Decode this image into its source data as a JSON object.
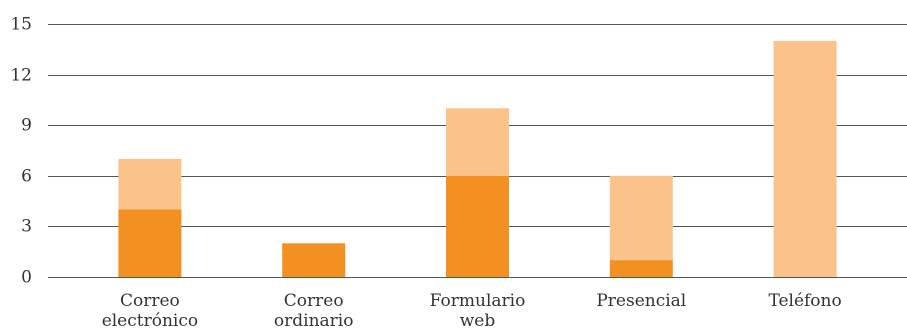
{
  "chart_data": {
    "type": "bar",
    "stacked": true,
    "categories": [
      [
        "Correo",
        "electrónico"
      ],
      [
        "Correo",
        "ordinario"
      ],
      [
        "Formulario",
        "web"
      ],
      [
        "Presencial"
      ],
      [
        "Teléfono"
      ]
    ],
    "series": [
      {
        "values": [
          4,
          2,
          6,
          1,
          0
        ],
        "color": "#F39022"
      },
      {
        "values": [
          3,
          0,
          4,
          5,
          14
        ],
        "color": "#FBC38A"
      }
    ],
    "yticks": [
      0,
      3,
      6,
      9,
      12,
      15
    ],
    "ylim": [
      0,
      15
    ],
    "grid": true,
    "title": "",
    "xlabel": "",
    "ylabel": ""
  }
}
